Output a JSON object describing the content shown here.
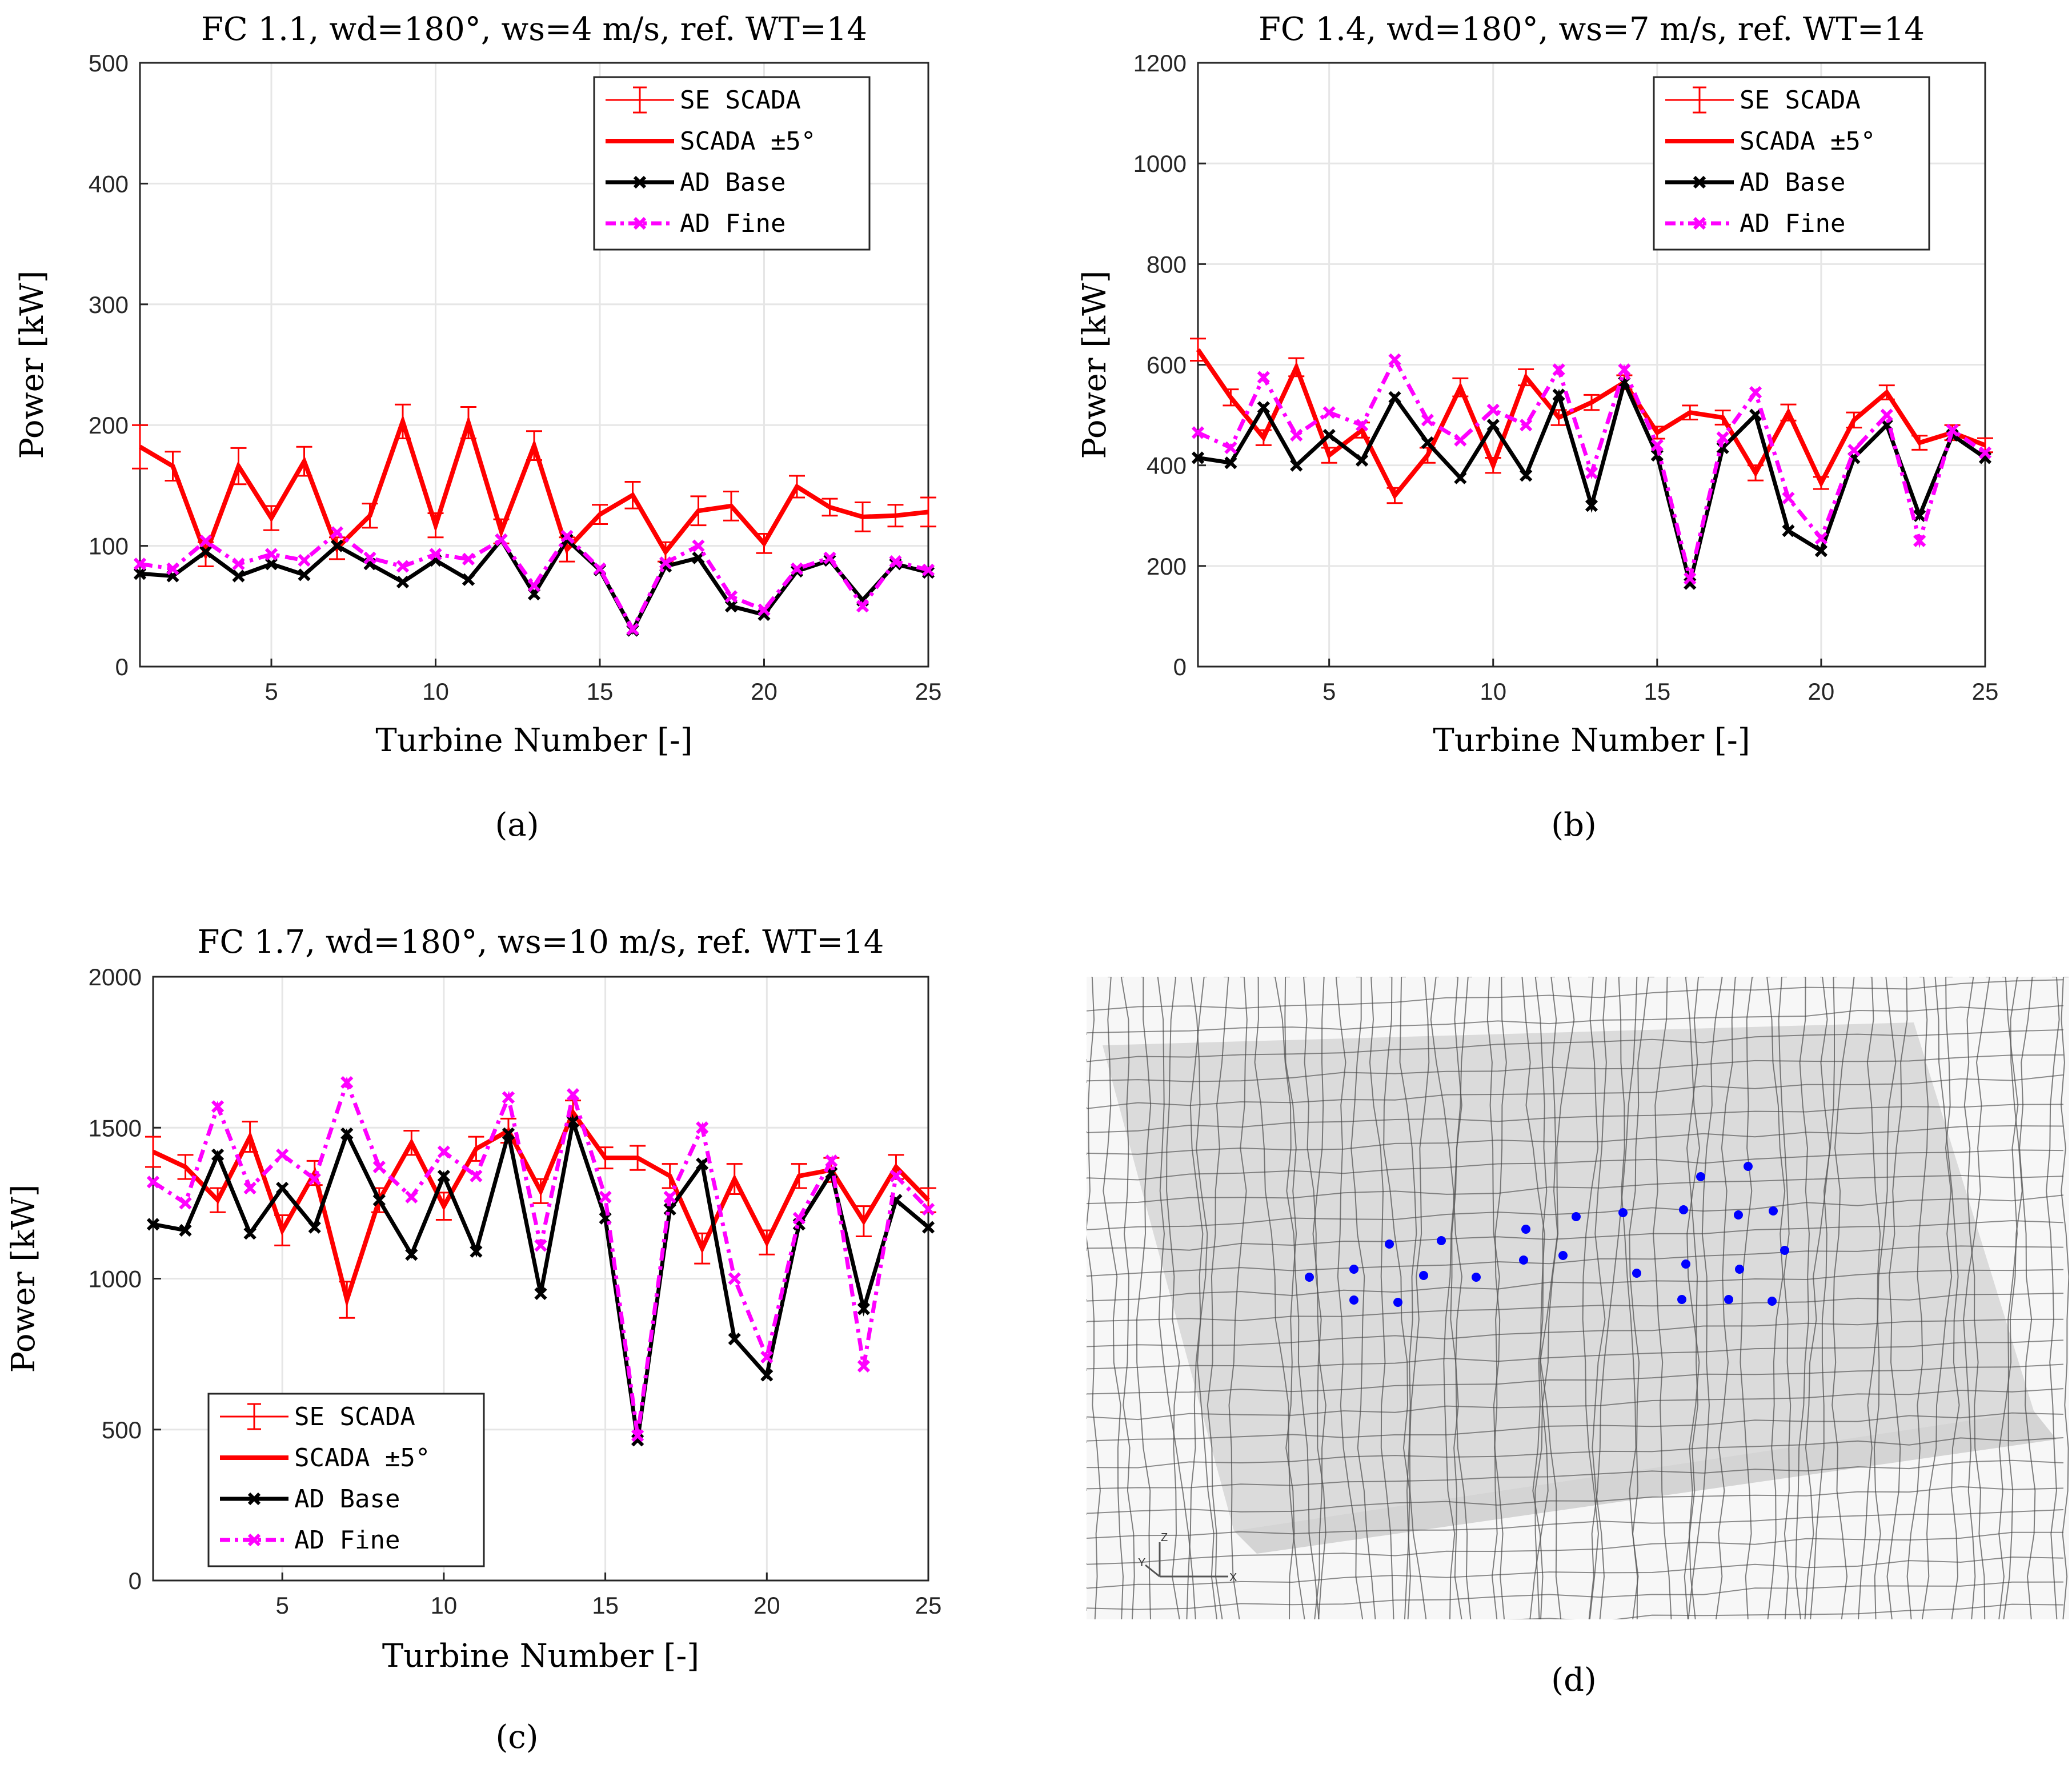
{
  "colors": {
    "se_scada": "#ff0000",
    "scada_band": "#ff0000",
    "ad_base": "#000000",
    "ad_fine": "#ff00ff",
    "grid": "#e6e6e6",
    "dots": "#0000ff"
  },
  "chart_data": [
    {
      "type": "line",
      "panel_label": "(a)",
      "title": "FC 1.1, wd=180°, ws=4 m/s, ref.  WT=14",
      "xlabel": "Turbine Number [-]",
      "ylabel": "Power [kW]",
      "xlim": [
        1,
        25
      ],
      "ylim": [
        0,
        500
      ],
      "xticks": [
        "5",
        "10",
        "15",
        "20",
        "25"
      ],
      "yticks": [
        "0",
        "100",
        "200",
        "300",
        "400",
        "500"
      ],
      "grid": true,
      "legend_position": "top-right",
      "x": [
        1,
        2,
        3,
        4,
        5,
        6,
        7,
        8,
        9,
        10,
        11,
        12,
        13,
        14,
        15,
        16,
        17,
        18,
        19,
        20,
        21,
        22,
        23,
        24,
        25
      ],
      "series": [
        {
          "name": "SE SCADA",
          "style": "errorbar",
          "values": [
            182,
            166,
            93,
            166,
            123,
            170,
            98,
            125,
            203,
            117,
            202,
            112,
            183,
            97,
            126,
            142,
            95,
            129,
            133,
            102,
            149,
            132,
            124,
            125,
            128
          ],
          "err": [
            18,
            12,
            10,
            15,
            10,
            12,
            9,
            10,
            14,
            10,
            13,
            10,
            12,
            10,
            8,
            11,
            8,
            12,
            12,
            8,
            9,
            7,
            12,
            9,
            12
          ]
        },
        {
          "name": "SCADA ±5°",
          "style": "thick",
          "values": [
            182,
            166,
            93,
            166,
            123,
            170,
            98,
            125,
            203,
            117,
            202,
            112,
            183,
            97,
            126,
            142,
            95,
            129,
            133,
            102,
            149,
            132,
            124,
            125,
            128
          ]
        },
        {
          "name": "AD Base",
          "style": "marker-solid",
          "values": [
            77,
            75,
            95,
            75,
            85,
            76,
            100,
            85,
            70,
            88,
            72,
            105,
            60,
            105,
            80,
            30,
            83,
            90,
            50,
            43,
            79,
            88,
            55,
            85,
            78
          ]
        },
        {
          "name": "AD Fine",
          "style": "marker-dashed",
          "values": [
            85,
            81,
            104,
            85,
            93,
            88,
            111,
            90,
            83,
            93,
            89,
            105,
            67,
            108,
            81,
            31,
            86,
            100,
            58,
            47,
            81,
            90,
            50,
            87,
            80
          ]
        }
      ]
    },
    {
      "type": "line",
      "panel_label": "(b)",
      "title": "FC 1.4, wd=180°, ws=7 m/s, ref.  WT=14",
      "xlabel": "Turbine Number [-]",
      "ylabel": "Power [kW]",
      "xlim": [
        1,
        25
      ],
      "ylim": [
        0,
        1200
      ],
      "xticks": [
        "5",
        "10",
        "15",
        "20",
        "25"
      ],
      "yticks": [
        "0",
        "200",
        "400",
        "600",
        "800",
        "1000",
        "1200"
      ],
      "grid": true,
      "legend_position": "top-right",
      "x": [
        1,
        2,
        3,
        4,
        5,
        6,
        7,
        8,
        9,
        10,
        11,
        12,
        13,
        14,
        15,
        16,
        17,
        18,
        19,
        20,
        21,
        22,
        23,
        24,
        25
      ],
      "series": [
        {
          "name": "SE SCADA",
          "style": "errorbar",
          "values": [
            630,
            535,
            455,
            595,
            420,
            470,
            340,
            420,
            555,
            400,
            575,
            495,
            525,
            565,
            465,
            505,
            495,
            385,
            505,
            365,
            490,
            545,
            445,
            465,
            440
          ],
          "err": [
            22,
            16,
            15,
            18,
            15,
            15,
            15,
            15,
            18,
            15,
            16,
            15,
            15,
            14,
            12,
            14,
            14,
            15,
            16,
            12,
            15,
            14,
            14,
            15,
            14
          ]
        },
        {
          "name": "SCADA ±5°",
          "style": "thick",
          "values": [
            630,
            535,
            455,
            595,
            420,
            470,
            340,
            420,
            555,
            400,
            575,
            495,
            525,
            565,
            465,
            505,
            495,
            385,
            505,
            365,
            490,
            545,
            445,
            465,
            440
          ]
        },
        {
          "name": "AD Base",
          "style": "marker-solid",
          "values": [
            415,
            405,
            515,
            400,
            460,
            410,
            535,
            445,
            375,
            480,
            380,
            540,
            320,
            565,
            420,
            165,
            435,
            500,
            270,
            230,
            415,
            480,
            300,
            460,
            415
          ]
        },
        {
          "name": "AD Fine",
          "style": "marker-dashed",
          "values": [
            465,
            435,
            575,
            460,
            505,
            480,
            610,
            490,
            450,
            510,
            480,
            590,
            385,
            590,
            440,
            175,
            455,
            545,
            335,
            255,
            430,
            500,
            250,
            470,
            425
          ]
        }
      ]
    },
    {
      "type": "line",
      "panel_label": "(c)",
      "title": "FC 1.7, wd=180°, ws=10 m/s, ref.  WT=14",
      "xlabel": "Turbine Number [-]",
      "ylabel": "Power [kW]",
      "xlim": [
        1,
        25
      ],
      "ylim": [
        0,
        2000
      ],
      "xticks": [
        "5",
        "10",
        "15",
        "20",
        "25"
      ],
      "yticks": [
        "0",
        "500",
        "1000",
        "1500",
        "2000"
      ],
      "grid": true,
      "legend_position": "bottom-left",
      "x": [
        1,
        2,
        3,
        4,
        5,
        6,
        7,
        8,
        9,
        10,
        11,
        12,
        13,
        14,
        15,
        16,
        17,
        18,
        19,
        20,
        21,
        22,
        23,
        24,
        25
      ],
      "series": [
        {
          "name": "SE SCADA",
          "style": "errorbar",
          "values": [
            1420,
            1370,
            1260,
            1470,
            1160,
            1350,
            930,
            1260,
            1450,
            1240,
            1430,
            1490,
            1290,
            1550,
            1400,
            1400,
            1340,
            1100,
            1330,
            1120,
            1340,
            1360,
            1190,
            1370,
            1260
          ],
          "err": [
            50,
            40,
            40,
            50,
            50,
            40,
            60,
            40,
            40,
            45,
            40,
            40,
            40,
            40,
            35,
            40,
            40,
            50,
            50,
            40,
            40,
            40,
            50,
            40,
            40
          ]
        },
        {
          "name": "SCADA ±5°",
          "style": "thick",
          "values": [
            1420,
            1370,
            1260,
            1470,
            1160,
            1350,
            930,
            1260,
            1450,
            1240,
            1430,
            1490,
            1290,
            1550,
            1400,
            1400,
            1340,
            1100,
            1330,
            1120,
            1340,
            1360,
            1190,
            1370,
            1260
          ]
        },
        {
          "name": "AD Base",
          "style": "marker-solid",
          "values": [
            1180,
            1160,
            1410,
            1150,
            1300,
            1170,
            1480,
            1260,
            1080,
            1340,
            1090,
            1480,
            950,
            1520,
            1200,
            465,
            1230,
            1380,
            800,
            680,
            1180,
            1350,
            900,
            1260,
            1170
          ]
        },
        {
          "name": "AD Fine",
          "style": "marker-dashed",
          "values": [
            1320,
            1250,
            1570,
            1300,
            1410,
            1330,
            1650,
            1370,
            1270,
            1420,
            1340,
            1600,
            1110,
            1610,
            1270,
            480,
            1270,
            1500,
            1000,
            740,
            1200,
            1390,
            710,
            1340,
            1230
          ]
        }
      ]
    }
  ],
  "panel_d": {
    "panel_label": "(d)",
    "axis_labels": [
      "Z",
      "Y",
      "X"
    ]
  }
}
